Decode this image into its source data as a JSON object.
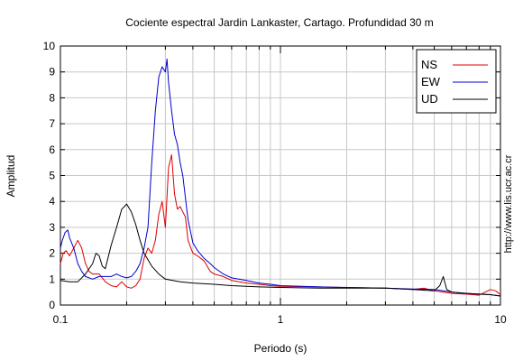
{
  "chart_data": {
    "type": "line",
    "title": "Cociente espectral Jardin Lankaster, Cartago. Profundidad 30 m",
    "xlabel": "Periodo (s)",
    "ylabel": "Amplitud",
    "xscale": "log",
    "xlim": [
      0.1,
      10
    ],
    "ylim": [
      0,
      10
    ],
    "x_tick_labels": [
      {
        "value": 0.1,
        "label": "0.1"
      },
      {
        "value": 1,
        "label": "1"
      },
      {
        "value": 10,
        "label": "10"
      }
    ],
    "y_tick_labels": [
      "0",
      "1",
      "2",
      "3",
      "4",
      "5",
      "6",
      "7",
      "8",
      "9",
      "10"
    ],
    "grid": true,
    "legend_position": "top-right",
    "side_note": "http://www.lis.ucr.ac.cr",
    "series": [
      {
        "name": "NS",
        "color": "#dd0000",
        "x": [
          0.1,
          0.103,
          0.106,
          0.11,
          0.115,
          0.12,
          0.125,
          0.13,
          0.135,
          0.14,
          0.15,
          0.16,
          0.17,
          0.18,
          0.19,
          0.2,
          0.21,
          0.22,
          0.23,
          0.24,
          0.25,
          0.26,
          0.27,
          0.28,
          0.29,
          0.3,
          0.31,
          0.32,
          0.33,
          0.34,
          0.35,
          0.36,
          0.37,
          0.38,
          0.4,
          0.42,
          0.45,
          0.48,
          0.5,
          0.55,
          0.6,
          0.7,
          0.8,
          0.9,
          1.0,
          1.5,
          2.0,
          3.0,
          4.0,
          4.5,
          5.0,
          5.5,
          6.0,
          7.0,
          8.0,
          9.0,
          9.5,
          10.0
        ],
        "y": [
          1.6,
          2.0,
          2.1,
          1.9,
          2.2,
          2.5,
          2.2,
          1.6,
          1.3,
          1.2,
          1.2,
          0.9,
          0.75,
          0.7,
          0.9,
          0.7,
          0.65,
          0.75,
          1.0,
          1.8,
          2.2,
          2.0,
          2.5,
          3.5,
          4.0,
          3.0,
          5.3,
          5.8,
          4.3,
          3.7,
          3.8,
          3.6,
          3.4,
          2.5,
          2.0,
          1.9,
          1.7,
          1.3,
          1.2,
          1.1,
          0.95,
          0.85,
          0.8,
          0.75,
          0.72,
          0.7,
          0.68,
          0.65,
          0.6,
          0.65,
          0.55,
          0.5,
          0.45,
          0.42,
          0.38,
          0.6,
          0.55,
          0.4
        ]
      },
      {
        "name": "EW",
        "color": "#0000cc",
        "x": [
          0.1,
          0.102,
          0.105,
          0.108,
          0.11,
          0.115,
          0.12,
          0.125,
          0.13,
          0.14,
          0.15,
          0.16,
          0.17,
          0.18,
          0.19,
          0.2,
          0.21,
          0.22,
          0.23,
          0.24,
          0.25,
          0.26,
          0.27,
          0.28,
          0.29,
          0.3,
          0.305,
          0.31,
          0.32,
          0.33,
          0.34,
          0.35,
          0.36,
          0.38,
          0.4,
          0.42,
          0.45,
          0.48,
          0.5,
          0.55,
          0.6,
          0.7,
          0.8,
          0.9,
          1.0,
          1.5,
          2.0,
          3.0,
          4.0,
          5.0,
          6.0,
          7.0,
          8.0,
          9.0,
          10.0
        ],
        "y": [
          2.2,
          2.5,
          2.8,
          2.9,
          2.6,
          2.2,
          1.6,
          1.3,
          1.1,
          1.0,
          1.1,
          1.1,
          1.1,
          1.2,
          1.1,
          1.05,
          1.1,
          1.3,
          1.6,
          2.2,
          3.0,
          5.5,
          7.5,
          8.8,
          9.2,
          9.0,
          9.5,
          8.6,
          7.5,
          6.6,
          6.2,
          5.5,
          5.0,
          3.3,
          2.4,
          2.1,
          1.8,
          1.6,
          1.45,
          1.2,
          1.05,
          0.95,
          0.85,
          0.8,
          0.75,
          0.7,
          0.68,
          0.65,
          0.62,
          0.6,
          0.5,
          0.45,
          0.42,
          0.4,
          0.35
        ]
      },
      {
        "name": "UD",
        "color": "#000000",
        "x": [
          0.1,
          0.11,
          0.12,
          0.13,
          0.14,
          0.145,
          0.15,
          0.155,
          0.16,
          0.17,
          0.18,
          0.19,
          0.2,
          0.21,
          0.22,
          0.23,
          0.24,
          0.26,
          0.28,
          0.3,
          0.35,
          0.4,
          0.5,
          0.6,
          0.7,
          0.8,
          1.0,
          1.5,
          2.0,
          3.0,
          4.0,
          5.0,
          5.3,
          5.5,
          5.7,
          6.0,
          7.0,
          8.0,
          9.0,
          10.0
        ],
        "y": [
          0.95,
          0.9,
          0.9,
          1.2,
          1.6,
          2.0,
          1.9,
          1.5,
          1.4,
          2.3,
          3.0,
          3.7,
          3.9,
          3.6,
          3.1,
          2.5,
          2.0,
          1.5,
          1.2,
          1.0,
          0.9,
          0.85,
          0.8,
          0.75,
          0.72,
          0.7,
          0.68,
          0.65,
          0.65,
          0.65,
          0.6,
          0.55,
          0.75,
          1.1,
          0.6,
          0.5,
          0.45,
          0.42,
          0.4,
          0.35
        ]
      }
    ]
  }
}
